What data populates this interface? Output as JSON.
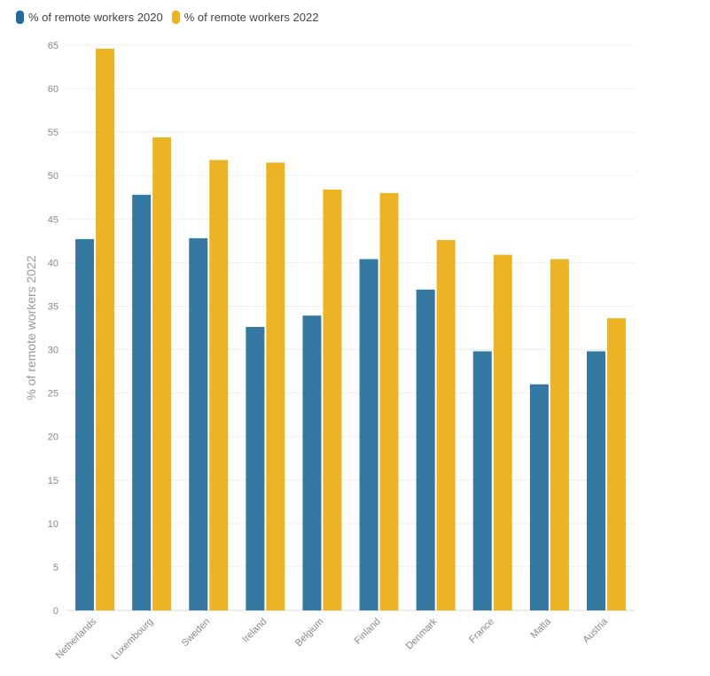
{
  "chart_data": {
    "type": "bar",
    "title": "",
    "xlabel": "",
    "ylabel": "% of remote workers 2022",
    "ylim": [
      0,
      65
    ],
    "yticks": [
      0,
      5,
      10,
      15,
      20,
      25,
      30,
      35,
      40,
      45,
      50,
      55,
      60,
      65
    ],
    "grid": true,
    "legend_position": "top-left",
    "categories": [
      "Netherlands",
      "Luxembourg",
      "Sweden",
      "Ireland",
      "Belgium",
      "Finland",
      "Denmark",
      "France",
      "Malta",
      "Austria"
    ],
    "series": [
      {
        "name": "% of remote workers 2020",
        "color": "#3578a1",
        "values": [
          42.7,
          47.8,
          42.8,
          32.6,
          33.9,
          40.4,
          36.9,
          29.8,
          26.0,
          29.8
        ]
      },
      {
        "name": "% of remote workers 2022",
        "color": "#ecb424",
        "values": [
          64.6,
          54.4,
          51.8,
          51.5,
          48.4,
          48.0,
          42.6,
          40.9,
          40.4,
          33.6
        ]
      }
    ]
  }
}
